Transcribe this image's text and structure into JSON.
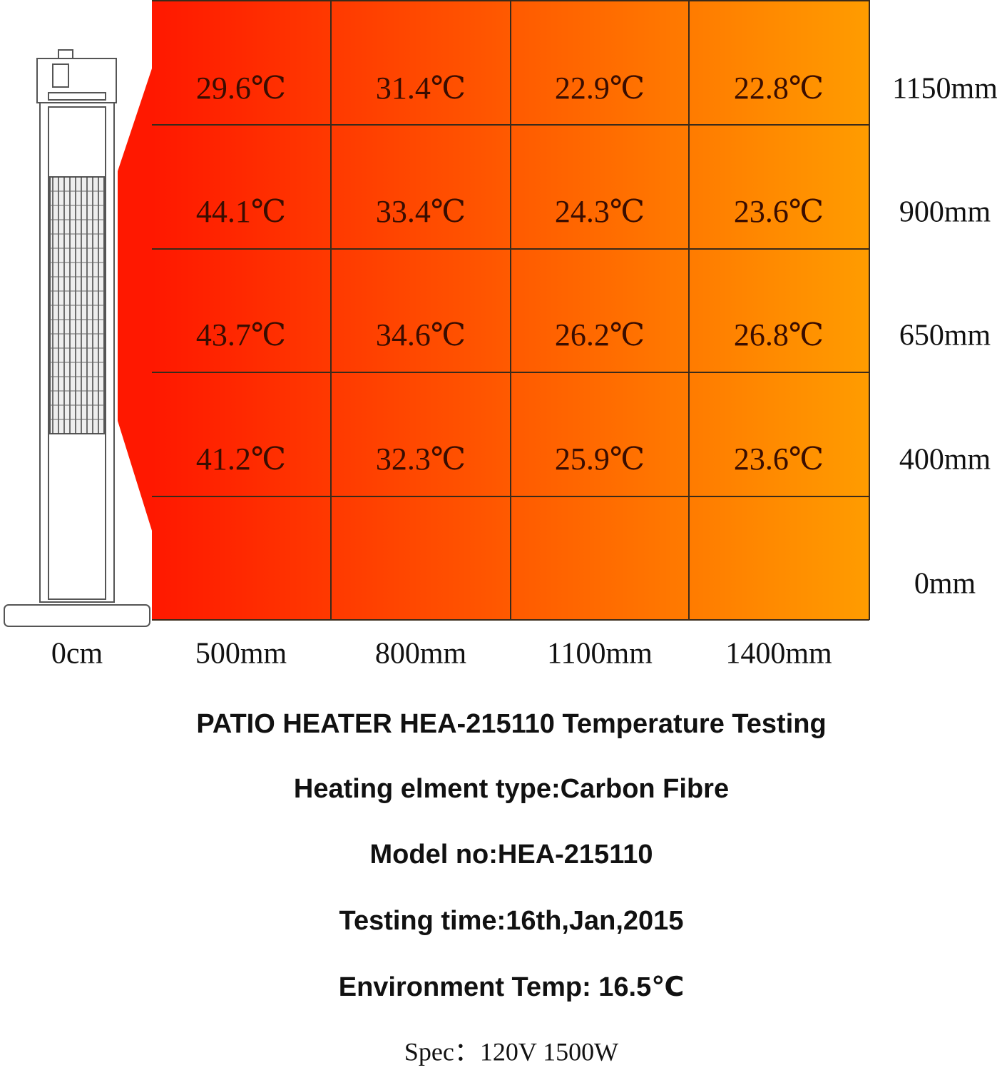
{
  "grid": {
    "rows": [
      {
        "label": "1150mm",
        "cells": [
          "29.6℃",
          "31.4℃",
          "22.9℃",
          "22.8℃"
        ]
      },
      {
        "label": "900mm",
        "cells": [
          "44.1℃",
          "33.4℃",
          "24.3℃",
          "23.6℃"
        ]
      },
      {
        "label": "650mm",
        "cells": [
          "43.7℃",
          "34.6℃",
          "26.2℃",
          "26.8℃"
        ]
      },
      {
        "label": "400mm",
        "cells": [
          "41.2℃",
          "32.3℃",
          "25.9℃",
          "23.6℃"
        ]
      },
      {
        "label": "0mm"
      }
    ],
    "origin_label": "0cm",
    "columns": [
      "500mm",
      "800mm",
      "1100mm",
      "1400mm"
    ]
  },
  "footer": {
    "title": "PATIO HEATER HEA-215110 Temperature Testing",
    "lines": [
      "Heating elment type:Carbon Fibre",
      "Model no:HEA-215110",
      "Testing time:16th,Jan,2015",
      "Environment Temp: 16.5℃"
    ],
    "spec": "Spec：120V 1500W"
  }
}
